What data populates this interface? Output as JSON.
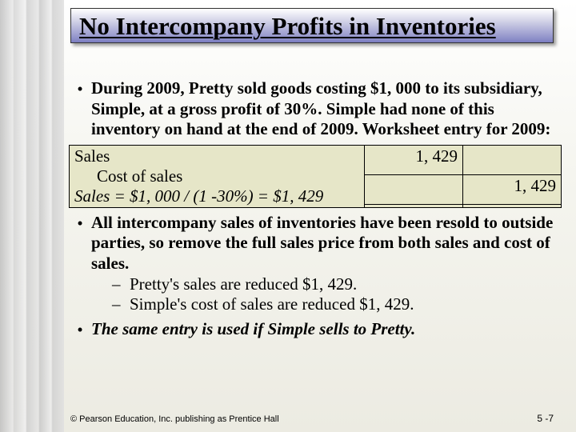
{
  "title": "No Intercompany Profits in Inventories",
  "bullet1": "During 2009, Pretty sold goods costing $1, 000 to its subsidiary, Simple, at a gross profit of 30%. Simple had none of this inventory on hand at the end of 2009. Worksheet entry for 2009:",
  "table": {
    "background_color": "#e6e6c8",
    "border_color": "#000000",
    "row1_label": "Sales",
    "row1_debit": "1, 429",
    "row1_credit": "",
    "row2_label": "Cost of sales",
    "row2_debit": "",
    "row2_credit": "1, 429",
    "calc": "Sales = $1, 000 / (1 -30%) = $1, 429"
  },
  "bullet2": "All intercompany sales of inventories have been resold to outside parties, so remove the full sales price from both sales and cost of sales.",
  "sub1": "Pretty's sales are reduced $1, 429.",
  "sub2": "Simple's cost of sales are reduced $1, 429.",
  "bullet3": "The same entry is used if Simple sells to Pretty.",
  "footer_left": "© Pearson Education, Inc. publishing as Prentice Hall",
  "footer_right": "5 -7",
  "colors": {
    "title_gradient_top": "#ffffff",
    "title_gradient_bottom": "#7a7cc0",
    "page_bg_top": "#ffffff",
    "page_bg_bottom": "#ecebe2"
  }
}
